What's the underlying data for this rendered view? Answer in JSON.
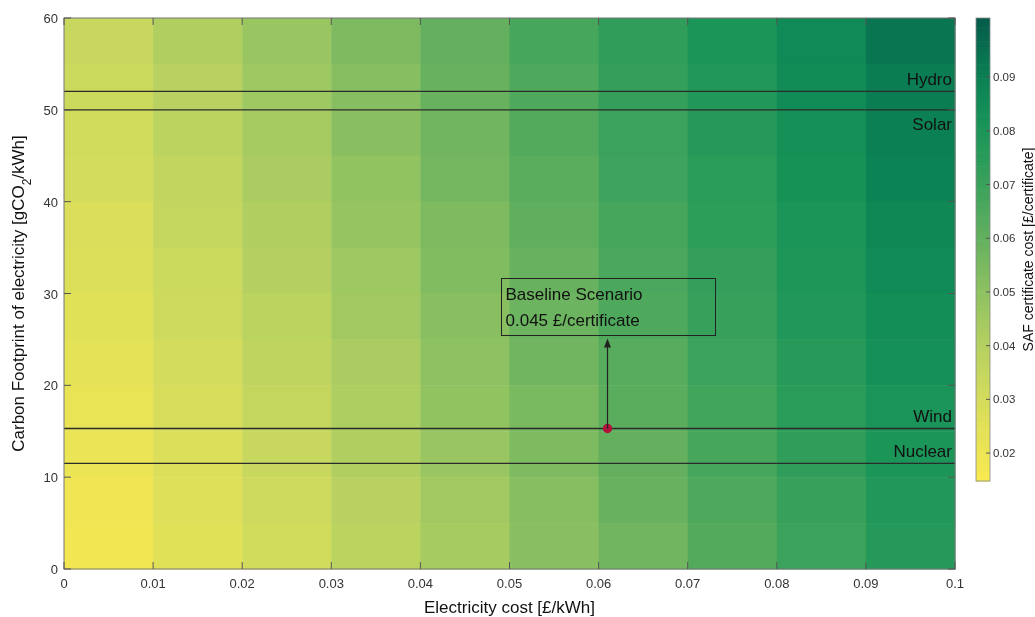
{
  "chart_data": {
    "type": "heatmap",
    "xlabel": "Electricity cost [£/kWh]",
    "ylabel": "Carbon Footprint of electricity [gCO$_{2}$/kWh]",
    "clabel": "SAF certificate cost [£/certificate]",
    "xlim": [
      0,
      0.1
    ],
    "xticks": [
      0,
      0.01,
      0.02,
      0.03,
      0.04,
      0.05,
      0.06,
      0.07,
      0.08,
      0.09,
      0.1
    ],
    "ylim": [
      0,
      60
    ],
    "yticks": [
      0,
      10,
      20,
      30,
      40,
      50,
      60
    ],
    "clim": [
      0.0148,
      0.101
    ],
    "cticks": [
      0.02,
      0.03,
      0.04,
      0.05,
      0.06,
      0.07,
      0.08,
      0.09
    ],
    "cells": [
      [
        0.034,
        0.041,
        0.047,
        0.054,
        0.06,
        0.067,
        0.073,
        0.08,
        0.086,
        0.093
      ],
      [
        0.033,
        0.039,
        0.046,
        0.052,
        0.059,
        0.065,
        0.072,
        0.078,
        0.085,
        0.091
      ],
      [
        0.031,
        0.038,
        0.044,
        0.051,
        0.057,
        0.064,
        0.07,
        0.077,
        0.083,
        0.09
      ],
      [
        0.03,
        0.036,
        0.043,
        0.049,
        0.056,
        0.062,
        0.069,
        0.075,
        0.082,
        0.089
      ],
      [
        0.028,
        0.035,
        0.041,
        0.048,
        0.054,
        0.061,
        0.067,
        0.074,
        0.08,
        0.087
      ],
      [
        0.027,
        0.033,
        0.04,
        0.046,
        0.053,
        0.059,
        0.066,
        0.072,
        0.079,
        0.086
      ],
      [
        0.025,
        0.032,
        0.038,
        0.045,
        0.051,
        0.058,
        0.065,
        0.071,
        0.078,
        0.084
      ],
      [
        0.024,
        0.03,
        0.037,
        0.043,
        0.05,
        0.057,
        0.063,
        0.07,
        0.076,
        0.083
      ],
      [
        0.022,
        0.029,
        0.035,
        0.042,
        0.049,
        0.055,
        0.062,
        0.068,
        0.075,
        0.081
      ],
      [
        0.021,
        0.027,
        0.034,
        0.041,
        0.047,
        0.054,
        0.06,
        0.067,
        0.073,
        0.08
      ],
      [
        0.019,
        0.026,
        0.032,
        0.039,
        0.045,
        0.052,
        0.059,
        0.065,
        0.071,
        0.078
      ],
      [
        0.018,
        0.025,
        0.031,
        0.038,
        0.044,
        0.051,
        0.057,
        0.064,
        0.07,
        0.077
      ]
    ],
    "series": [
      {
        "type": "scatter",
        "x": [
          0.061
        ],
        "values": [
          15.3
        ],
        "color": "#b0123a"
      }
    ],
    "marker": "circle",
    "ref_lines": [
      {
        "axis": "y",
        "value": 52,
        "label": "Hydro",
        "color": "#2b2b2b"
      },
      {
        "axis": "y",
        "value": 50,
        "label": "Solar",
        "color": "#2b2b2b"
      },
      {
        "axis": "y",
        "value": 15.3,
        "label": "Wind",
        "color": "#2b2b2b"
      },
      {
        "axis": "y",
        "value": 11.5,
        "label": "Nuclear",
        "color": "#2b2b2b"
      }
    ],
    "annotations": [
      {
        "text": "Baseline Scenario\n0.045 £/certificate",
        "x": 0.061,
        "y": 15.3
      }
    ]
  }
}
